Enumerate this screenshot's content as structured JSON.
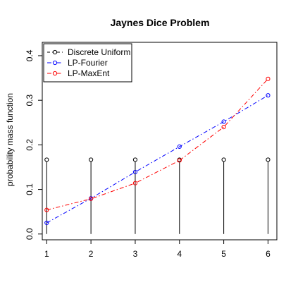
{
  "chart_data": {
    "type": "line",
    "title": "Jaynes Dice Problem",
    "xlabel": "",
    "ylabel": "probability mass function",
    "x": [
      1,
      2,
      3,
      4,
      5,
      6
    ],
    "xticks": [
      "1",
      "2",
      "3",
      "4",
      "5",
      "6"
    ],
    "xlim": [
      0.9,
      6.2
    ],
    "ylim": [
      -0.013,
      0.43
    ],
    "yticks": [
      0.0,
      0.1,
      0.2,
      0.3,
      0.4
    ],
    "ytick_labels": [
      "0.0",
      "0.1",
      "0.2",
      "0.3",
      "0.4"
    ],
    "grid": false,
    "legend_position": "top-left",
    "series": [
      {
        "name": "Discrete Uniform",
        "style": "vertical-lines-with-points",
        "color": "#000000",
        "values": [
          0.1667,
          0.1667,
          0.1667,
          0.1667,
          0.1667,
          0.1667
        ]
      },
      {
        "name": "LP-Fourier",
        "style": "dash-dot",
        "color": "#0000ff",
        "values": [
          0.025,
          0.08,
          0.139,
          0.196,
          0.252,
          0.311
        ]
      },
      {
        "name": "LP-MaxEnt",
        "style": "dash-dot",
        "color": "#ff0000",
        "values": [
          0.054,
          0.079,
          0.114,
          0.165,
          0.24,
          0.348
        ]
      }
    ]
  }
}
